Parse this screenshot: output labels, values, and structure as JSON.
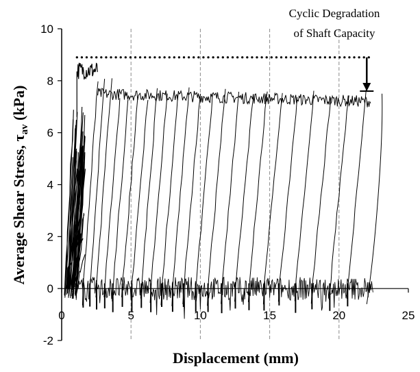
{
  "chart_data": {
    "type": "line",
    "xlabel": "Displacement (mm)",
    "ylabel_main": "Average Shear Stress, ",
    "ylabel_symbol": "τ",
    "ylabel_sub": "av",
    "ylabel_unit": " (kPa)",
    "xlim": [
      0,
      25
    ],
    "ylim": [
      -2,
      10
    ],
    "xticks": [
      "0",
      "5",
      "10",
      "15",
      "20",
      "25"
    ],
    "yticks": [
      "-2",
      "0",
      "2",
      "4",
      "6",
      "8",
      "10"
    ],
    "grid": "vertical",
    "annotation": {
      "line1": "Cyclic Degradation",
      "line2": "of Shaft Capacity",
      "peak_level": 8.9,
      "degraded_level": 7.6,
      "x_start": 1.1,
      "x_end": 22.2,
      "arrow_x": 22.0
    },
    "series": [
      {
        "cycles_base_x": [
          2.6,
          3.1,
          3.6,
          4.2,
          4.8,
          5.5,
          6.2,
          6.9,
          7.6,
          8.4,
          9.2,
          10.0,
          10.9,
          11.8,
          12.8,
          13.8,
          14.8,
          15.9,
          17.0,
          18.2,
          19.4,
          20.7,
          22.0
        ],
        "top_end_x": 23.1,
        "plateau_values": [
          8.6,
          7.5,
          7.2
        ],
        "loop_bottom": -0.8
      }
    ]
  }
}
